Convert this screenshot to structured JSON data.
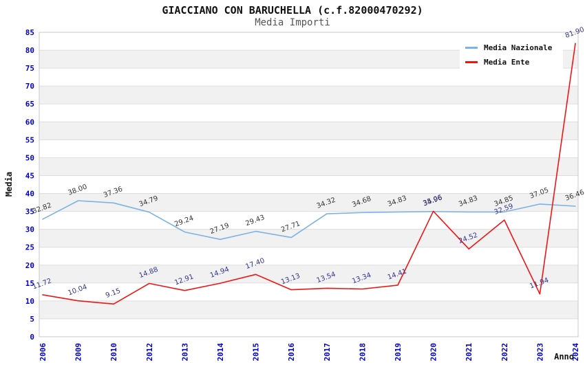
{
  "chart_data": {
    "type": "line",
    "title": "GIACCIANO CON BARUCHELLA (c.f.82000470292)",
    "subtitle": "Media Importi",
    "xlabel": "Anno",
    "ylabel": "Media",
    "categories": [
      "2006",
      "2009",
      "2010",
      "2012",
      "2013",
      "2014",
      "2015",
      "2016",
      "2017",
      "2018",
      "2019",
      "2020",
      "2021",
      "2022",
      "2023",
      "2024"
    ],
    "series": [
      {
        "name": "Media Nazionale",
        "color": "#7CB2E6",
        "label_color": "#333333",
        "values": [
          32.82,
          38.0,
          37.36,
          34.79,
          29.24,
          27.19,
          29.43,
          27.71,
          34.32,
          34.68,
          34.83,
          34.96,
          34.83,
          34.85,
          37.05,
          36.46
        ],
        "labels": [
          "32.82",
          "38.00",
          "37.36",
          "34.79",
          "29.24",
          "27.19",
          "29.43",
          "27.71",
          "34.32",
          "34.68",
          "34.83",
          "34.96",
          "34.83",
          "34.85",
          "37.05",
          "36.46"
        ]
      },
      {
        "name": "Media Ente",
        "color": "#F01414",
        "label_color": "#33338F",
        "values": [
          11.72,
          10.04,
          9.15,
          14.88,
          12.91,
          14.94,
          17.4,
          13.13,
          13.54,
          13.34,
          14.41,
          35.06,
          24.52,
          32.59,
          11.94,
          81.9
        ],
        "labels": [
          "11.72",
          "10.04",
          "9.15",
          "14.88",
          "12.91",
          "14.94",
          "17.40",
          "13.13",
          "13.54",
          "13.34",
          "14.41",
          "35.06",
          "24.52",
          "32.59",
          "11.94",
          "81.90"
        ]
      }
    ],
    "ylim": [
      0,
      85
    ],
    "ytick_step": 5,
    "grid": true,
    "legend_position": "top-right",
    "band_color": "#F1F1F1",
    "gridline_color": "#DDDDDD",
    "border_color": "#C9C9C9",
    "tick_label_color": "#0000CC"
  }
}
